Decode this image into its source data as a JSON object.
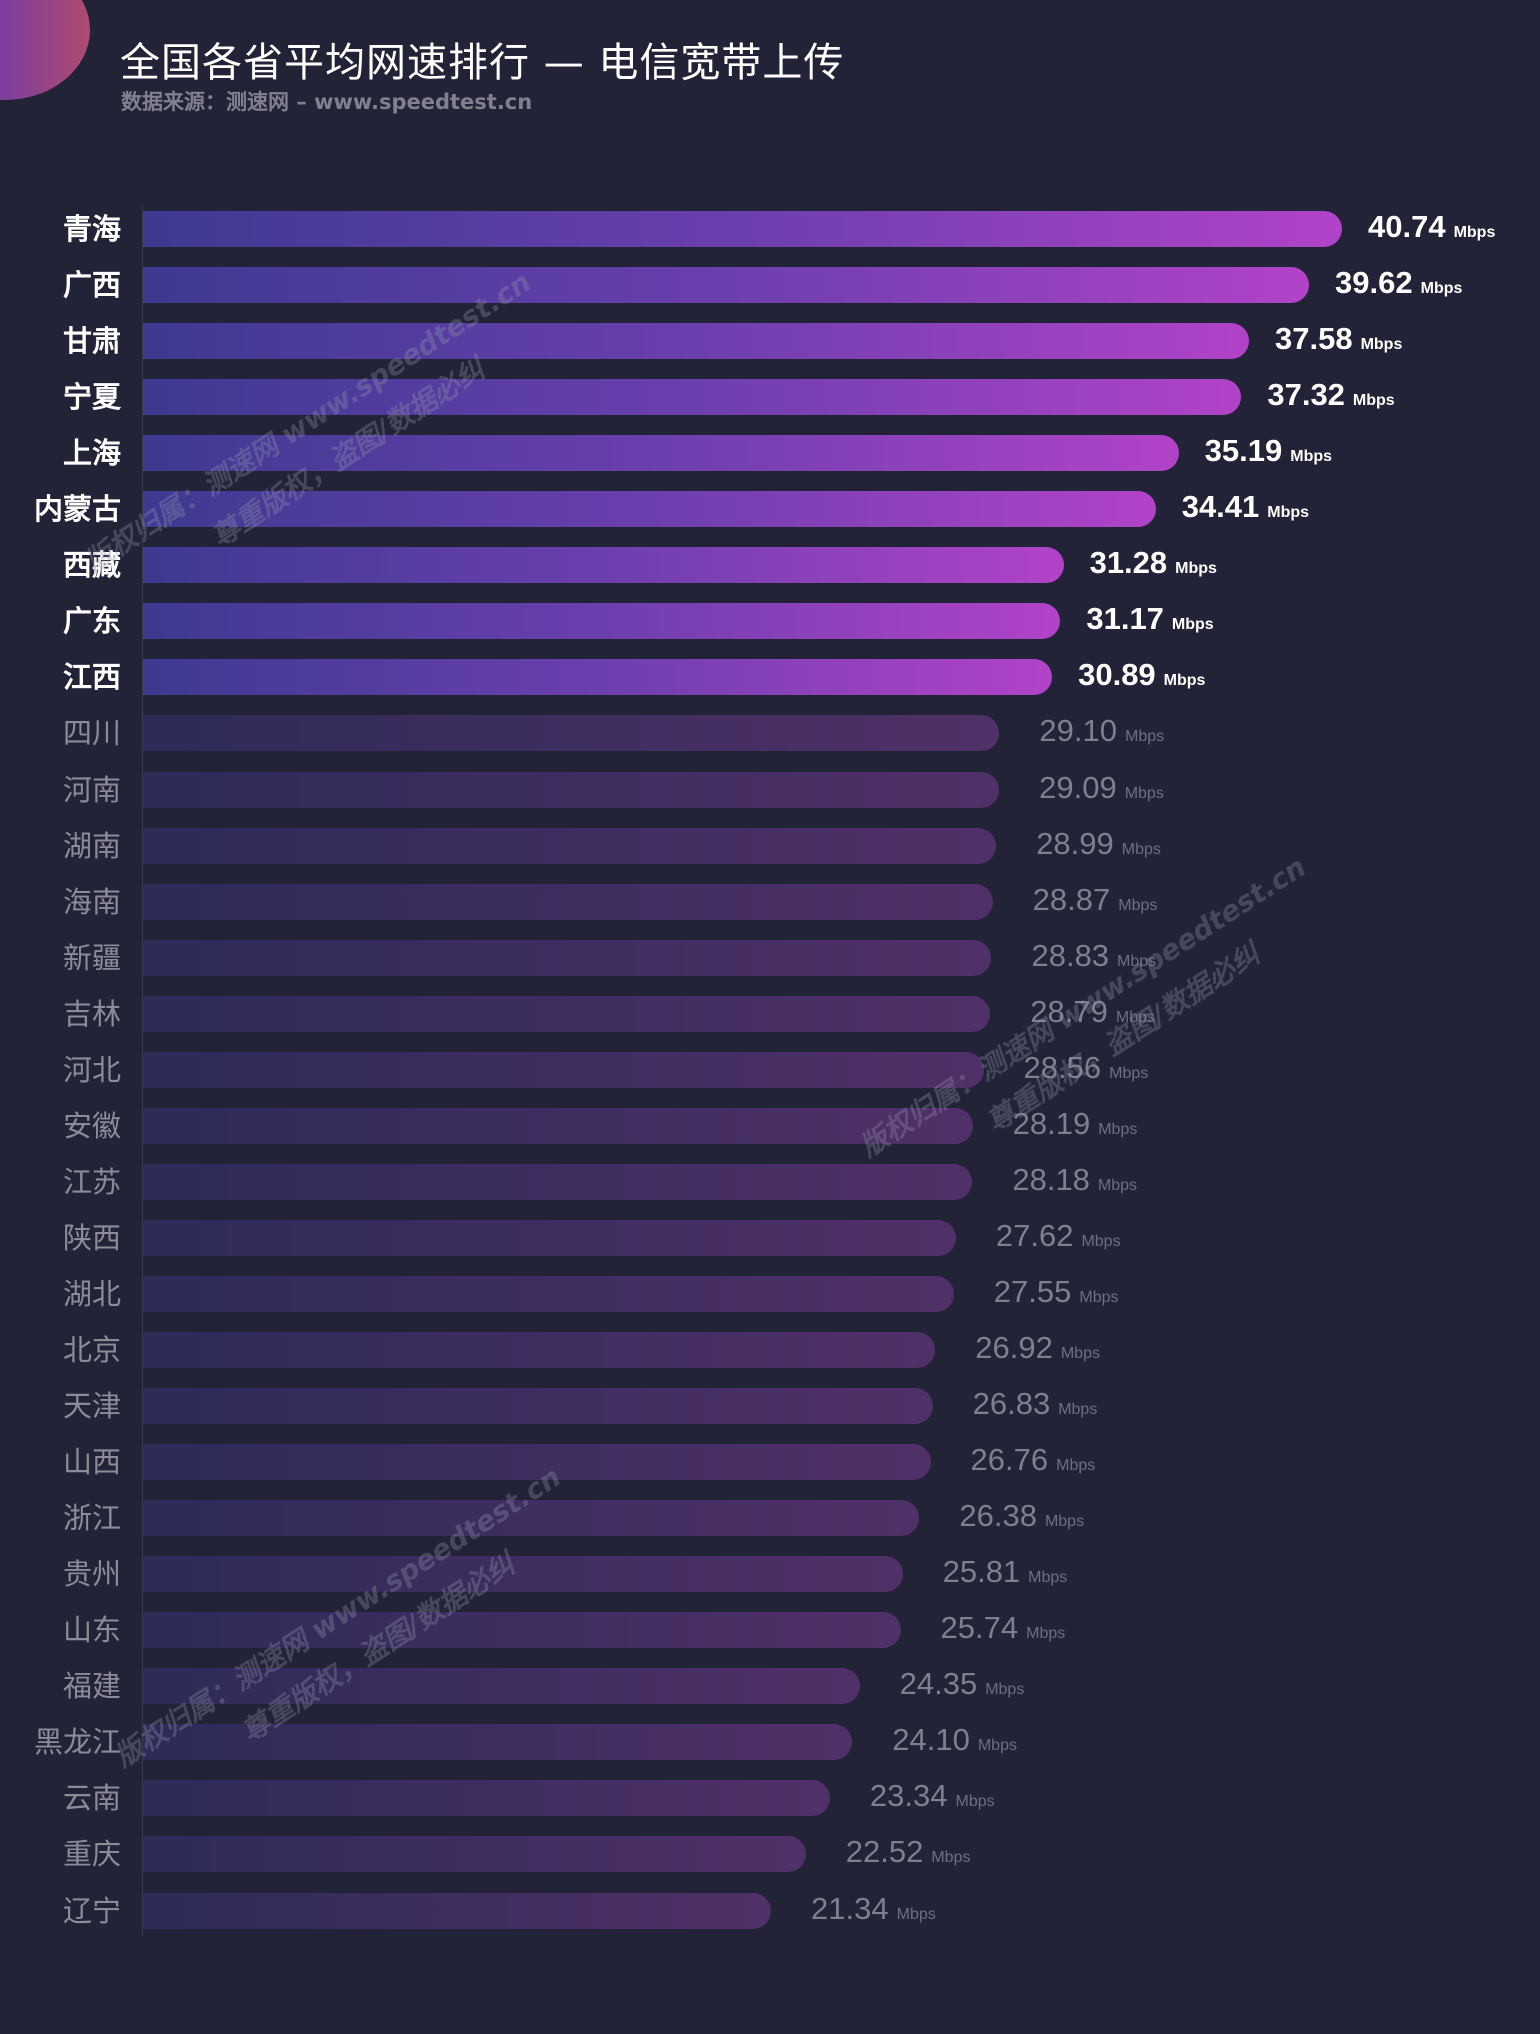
{
  "title": "全国各省平均网速排行 — 电信宽带上传",
  "subtitle": "数据来源：测速网 – www.speedtest.cn",
  "watermark": {
    "line1": "版权归属：测速网 www.speedtest.cn",
    "line2": "尊重版权，盗图/数据必纠"
  },
  "colors": {
    "background": "#222336",
    "highlight_bar_start": "#3d3a90",
    "highlight_bar_end": "#b243c9",
    "dim_bar_start": "#2d2b58",
    "dim_bar_end": "#503068"
  },
  "chart_data": {
    "type": "bar",
    "orientation": "horizontal",
    "title": "全国各省平均网速排行 — 电信宽带上传",
    "unit": "Mbps",
    "highlighted_top_n": 9,
    "xlim": [
      0,
      41
    ],
    "categories": [
      "青海",
      "广西",
      "甘肃",
      "宁夏",
      "上海",
      "内蒙古",
      "西藏",
      "广东",
      "江西",
      "四川",
      "河南",
      "湖南",
      "海南",
      "新疆",
      "吉林",
      "河北",
      "安徽",
      "江苏",
      "陕西",
      "湖北",
      "北京",
      "天津",
      "山西",
      "浙江",
      "贵州",
      "山东",
      "福建",
      "黑龙江",
      "云南",
      "重庆",
      "辽宁"
    ],
    "values": [
      40.74,
      39.62,
      37.58,
      37.32,
      35.19,
      34.41,
      31.28,
      31.17,
      30.89,
      29.1,
      29.09,
      28.99,
      28.87,
      28.83,
      28.79,
      28.56,
      28.19,
      28.18,
      27.62,
      27.55,
      26.92,
      26.83,
      26.76,
      26.38,
      25.81,
      25.74,
      24.35,
      24.1,
      23.34,
      22.52,
      21.34
    ],
    "labels": [
      "40.74",
      "39.62",
      "37.58",
      "37.32",
      "35.19",
      "34.41",
      "31.28",
      "31.17",
      "30.89",
      "29.10",
      "29.09",
      "28.99",
      "28.87",
      "28.83",
      "28.79",
      "28.56",
      "28.19",
      "28.18",
      "27.62",
      "27.55",
      "26.92",
      "26.83",
      "26.76",
      "26.38",
      "25.81",
      "25.74",
      "24.35",
      "24.10",
      "23.34",
      "22.52",
      "21.34"
    ]
  }
}
